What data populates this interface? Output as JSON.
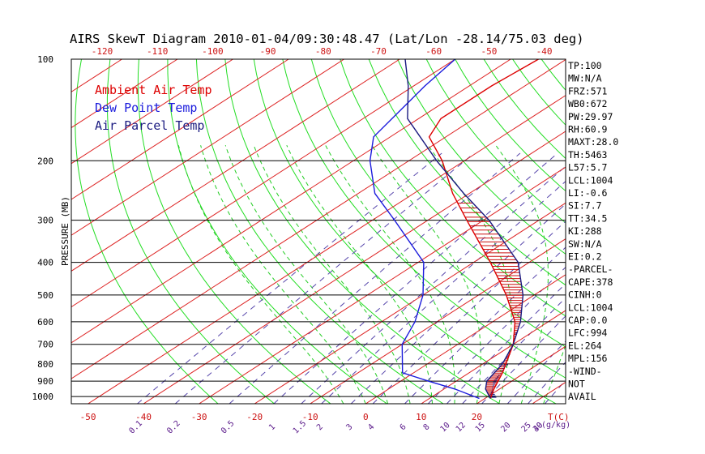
{
  "chart_data": {
    "type": "line",
    "title": "AIRS SkewT Diagram 2010-01-04/09:30:48.47 (Lat/Lon -28.14/75.03 deg)",
    "ylabel": "PRESSURE (MB)",
    "xunit": "T(C)",
    "mixing_unit": "(g/kg)",
    "y_scale": "log",
    "ylim": [
      1050,
      100
    ],
    "xlim_bottom": [
      -53,
      36
    ],
    "pressure_ticks": [
      100,
      200,
      300,
      400,
      500,
      600,
      700,
      800,
      900,
      1000
    ],
    "bottom_temp_ticks": [
      -50,
      -40,
      -30,
      -20,
      -10,
      0,
      10,
      20
    ],
    "top_temp_ticks": [
      -120,
      -110,
      -100,
      -90,
      -80,
      -70,
      -60,
      -50,
      -40
    ],
    "mixing_ratio_labels": [
      "0.1",
      "0.2",
      "0.5",
      "1",
      "1.5",
      "2",
      "3",
      "4",
      "6",
      "8",
      "10",
      "12",
      "15",
      "20",
      "25",
      "30",
      "40"
    ],
    "legend": [
      "Ambient Air Temp",
      "Dew Point Temp",
      "Air Parcel Temp"
    ],
    "legend_placement": "top-left",
    "colors": {
      "ambient": "#dd0000",
      "dewpoint": "#1a1adc",
      "parcel": "#1a1a80",
      "dry_adiabat": "#22dd22",
      "isotherm": "#dd2222",
      "moist_adiabat": "#22cc22",
      "mixing_ratio": "#5544aa",
      "cape_hatch": "#cc1111",
      "axis": "#000000",
      "tick_label": "#cc1111",
      "mixing_label": "#5a1a8a"
    },
    "series": [
      {
        "name": "Ambient Air Temp",
        "points": [
          [
            1013,
            21.0
          ],
          [
            950,
            19.0
          ],
          [
            850,
            16.0
          ],
          [
            700,
            10.0
          ],
          [
            600,
            4.0
          ],
          [
            500,
            -5.0
          ],
          [
            400,
            -17.0
          ],
          [
            300,
            -33.0
          ],
          [
            250,
            -43.0
          ],
          [
            200,
            -54.0
          ],
          [
            170,
            -63.0
          ],
          [
            150,
            -66.0
          ],
          [
            120,
            -66.0
          ],
          [
            100,
            -65.0
          ]
        ]
      },
      {
        "name": "Dew Point Temp",
        "points": [
          [
            1013,
            19.0
          ],
          [
            950,
            12.0
          ],
          [
            900,
            5.0
          ],
          [
            850,
            -2.0
          ],
          [
            700,
            -10.0
          ],
          [
            600,
            -14.0
          ],
          [
            500,
            -20.0
          ],
          [
            400,
            -29.0
          ],
          [
            300,
            -46.0
          ],
          [
            250,
            -57.0
          ],
          [
            200,
            -67.0
          ],
          [
            170,
            -73.0
          ],
          [
            120,
            -78.0
          ],
          [
            100,
            -80.0
          ]
        ]
      },
      {
        "name": "Air Parcel Temp",
        "points": [
          [
            1013,
            21.0
          ],
          [
            950,
            17.5
          ],
          [
            900,
            15.5
          ],
          [
            800,
            13.5
          ],
          [
            700,
            10.0
          ],
          [
            600,
            5.0
          ],
          [
            500,
            -2.0
          ],
          [
            400,
            -12.0
          ],
          [
            300,
            -29.0
          ],
          [
            250,
            -41.0
          ],
          [
            200,
            -55.0
          ],
          [
            150,
            -72.0
          ],
          [
            120,
            -81.0
          ],
          [
            100,
            -89.0
          ]
        ]
      }
    ],
    "indices": [
      "TP:100",
      "MW:N/A",
      "FRZ:571",
      "WB0:672",
      "PW:29.97",
      "RH:60.9",
      "MAXT:28.0",
      "TH:5463",
      "L57:5.7",
      "LCL:1004",
      "LI:-0.6",
      "SI:7.7",
      "TT:34.5",
      "KI:288",
      "SW:N/A",
      "EI:0.2",
      "-PARCEL-",
      "CAPE:378",
      "CINH:0",
      "LCL:1004",
      "CAP:0.0",
      "LFC:994",
      "EL:264",
      "MPL:156",
      "-WIND-",
      "NOT",
      "AVAIL"
    ]
  }
}
